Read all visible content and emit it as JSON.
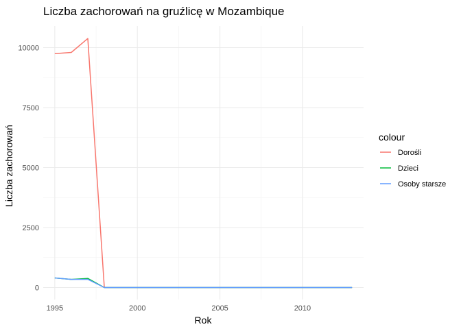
{
  "chart_data": {
    "type": "line",
    "title": "Liczba zachorowań na gruźlicę w Mozambique",
    "xlabel": "Rok",
    "ylabel": "Liczba zachorowań",
    "xlim": [
      1994.3,
      2013.7
    ],
    "ylim": [
      -500,
      10900
    ],
    "x_ticks": [
      1995,
      2000,
      2005,
      2010
    ],
    "y_ticks": [
      0,
      2500,
      5000,
      7500,
      10000
    ],
    "x_tick_labels": [
      "1995",
      "2000",
      "2005",
      "2010"
    ],
    "y_tick_labels": [
      "0",
      "2500",
      "5000",
      "7500",
      "10000"
    ],
    "grid": true,
    "legend": {
      "title": "colour",
      "position": "right"
    },
    "x": [
      1995,
      1996,
      1997,
      1998,
      1999,
      2000,
      2001,
      2002,
      2003,
      2004,
      2005,
      2006,
      2007,
      2008,
      2009,
      2010,
      2011,
      2012,
      2013
    ],
    "series": [
      {
        "name": "Dorośli",
        "color": "#F8766D",
        "values": [
          9750,
          9800,
          10380,
          0,
          0,
          0,
          0,
          0,
          0,
          0,
          0,
          0,
          0,
          0,
          0,
          0,
          0,
          0,
          0
        ]
      },
      {
        "name": "Dzieci",
        "color": "#00BA38",
        "values": [
          400,
          340,
          380,
          0,
          0,
          0,
          0,
          0,
          0,
          0,
          0,
          0,
          0,
          0,
          0,
          0,
          0,
          0,
          0
        ]
      },
      {
        "name": "Osoby starsze",
        "color": "#619CFF",
        "values": [
          400,
          340,
          340,
          0,
          0,
          0,
          0,
          0,
          0,
          0,
          0,
          0,
          0,
          0,
          0,
          0,
          0,
          0,
          0
        ]
      }
    ]
  }
}
